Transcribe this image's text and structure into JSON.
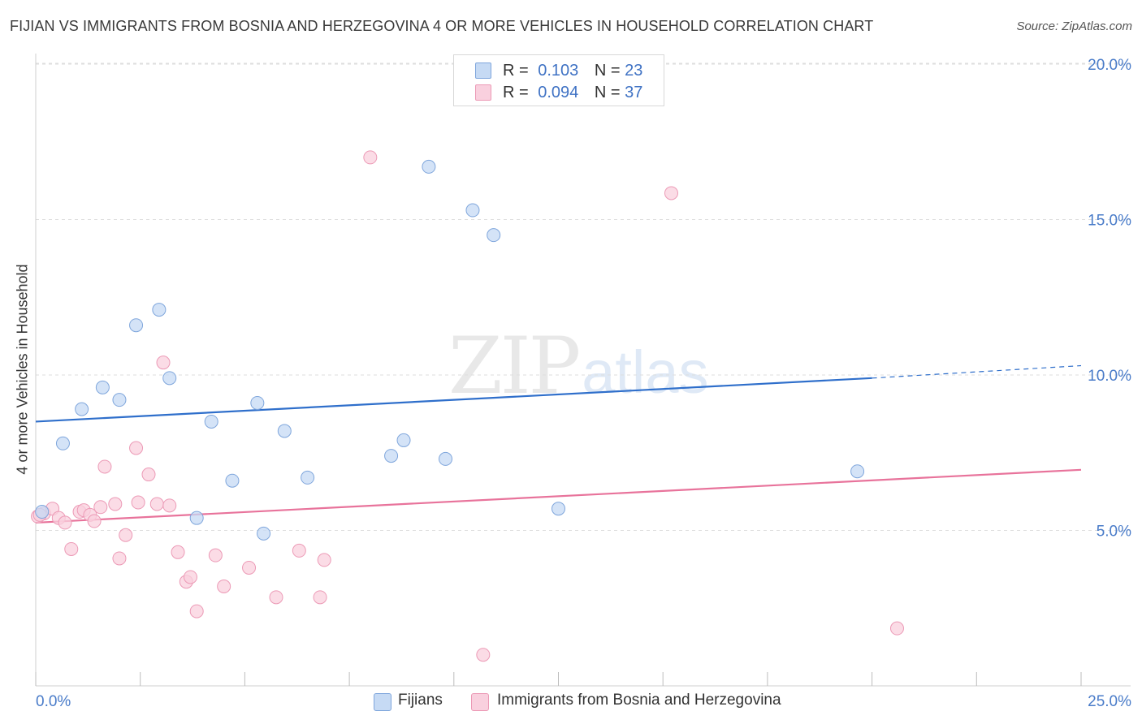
{
  "title": "FIJIAN VS IMMIGRANTS FROM BOSNIA AND HERZEGOVINA 4 OR MORE VEHICLES IN HOUSEHOLD CORRELATION CHART",
  "source": "Source: ZipAtlas.com",
  "watermark": {
    "zip": "ZIP",
    "atlas": "atlas"
  },
  "legend": {
    "rows": [
      {
        "r_label": "R =",
        "r_value": "0.103",
        "n_label": "N =",
        "n_value": "23",
        "color": "#aec9ee"
      },
      {
        "r_label": "R =",
        "r_value": "0.094",
        "n_label": "N =",
        "n_value": "37",
        "color": "#f6bcd0"
      }
    ]
  },
  "bottom_legend": {
    "series1": "Fijians",
    "series2": "Immigrants from Bosnia and Herzegovina"
  },
  "colors": {
    "blue_line": "#2f6fcb",
    "pink_line": "#e8739b",
    "blue_fill": "#c6daf4",
    "blue_stroke": "#7fa6dc",
    "pink_fill": "#f9d0de",
    "pink_stroke": "#ec9ab6",
    "grid": "#dedede",
    "axis_text": "#4a7cc9"
  },
  "chart_data": {
    "type": "scatter",
    "title": "FIJIAN VS IMMIGRANTS FROM BOSNIA AND HERZEGOVINA 4 OR MORE VEHICLES IN HOUSEHOLD CORRELATION CHART",
    "xlabel": "",
    "ylabel": "4 or more Vehicles in Household",
    "xlim": [
      0,
      25
    ],
    "ylim": [
      0,
      20.5
    ],
    "x_tick_labels": [
      "0.0%",
      "25.0%"
    ],
    "y_ticks": [
      5,
      10,
      15,
      20
    ],
    "y_tick_labels": [
      "5.0%",
      "10.0%",
      "15.0%",
      "20.0%"
    ],
    "series": [
      {
        "name": "Fijians",
        "r": 0.103,
        "n": 23,
        "points": [
          [
            0.15,
            5.6
          ],
          [
            0.65,
            7.8
          ],
          [
            1.1,
            8.9
          ],
          [
            1.6,
            9.6
          ],
          [
            2.0,
            9.2
          ],
          [
            2.4,
            11.6
          ],
          [
            2.95,
            12.1
          ],
          [
            3.2,
            9.9
          ],
          [
            3.85,
            5.4
          ],
          [
            4.2,
            8.5
          ],
          [
            4.7,
            6.6
          ],
          [
            5.3,
            9.1
          ],
          [
            5.45,
            4.9
          ],
          [
            5.95,
            8.2
          ],
          [
            6.5,
            6.7
          ],
          [
            8.5,
            7.4
          ],
          [
            8.8,
            7.9
          ],
          [
            9.4,
            16.7
          ],
          [
            9.8,
            7.3
          ],
          [
            10.45,
            15.3
          ],
          [
            10.95,
            14.5
          ],
          [
            12.5,
            5.7
          ],
          [
            19.65,
            6.9
          ]
        ],
        "trend": {
          "x0": 0,
          "y0": 8.5,
          "x1": 20,
          "y1": 9.9,
          "dashed_to_x": 25,
          "dashed_to_y": 10.3
        }
      },
      {
        "name": "Immigrants from Bosnia and Herzegovina",
        "r": 0.094,
        "n": 37,
        "points": [
          [
            0.05,
            5.45
          ],
          [
            0.2,
            5.55
          ],
          [
            0.4,
            5.7
          ],
          [
            0.55,
            5.4
          ],
          [
            0.7,
            5.25
          ],
          [
            0.85,
            4.4
          ],
          [
            1.05,
            5.6
          ],
          [
            1.15,
            5.65
          ],
          [
            1.3,
            5.5
          ],
          [
            1.4,
            5.3
          ],
          [
            1.55,
            5.75
          ],
          [
            1.65,
            7.05
          ],
          [
            1.9,
            5.85
          ],
          [
            2.0,
            4.1
          ],
          [
            2.15,
            4.85
          ],
          [
            2.4,
            7.65
          ],
          [
            2.45,
            5.9
          ],
          [
            2.7,
            6.8
          ],
          [
            2.9,
            5.85
          ],
          [
            3.05,
            10.4
          ],
          [
            3.2,
            5.8
          ],
          [
            3.4,
            4.3
          ],
          [
            3.6,
            3.35
          ],
          [
            3.7,
            3.5
          ],
          [
            3.85,
            2.4
          ],
          [
            4.3,
            4.2
          ],
          [
            4.5,
            3.2
          ],
          [
            5.1,
            3.8
          ],
          [
            5.75,
            2.85
          ],
          [
            6.3,
            4.35
          ],
          [
            6.8,
            2.85
          ],
          [
            6.9,
            4.05
          ],
          [
            8.0,
            17.0
          ],
          [
            10.7,
            1.0
          ],
          [
            15.2,
            15.85
          ],
          [
            20.6,
            1.85
          ],
          [
            0.1,
            5.5
          ]
        ],
        "trend": {
          "x0": 0,
          "y0": 5.25,
          "x1": 25,
          "y1": 6.95
        }
      }
    ]
  }
}
